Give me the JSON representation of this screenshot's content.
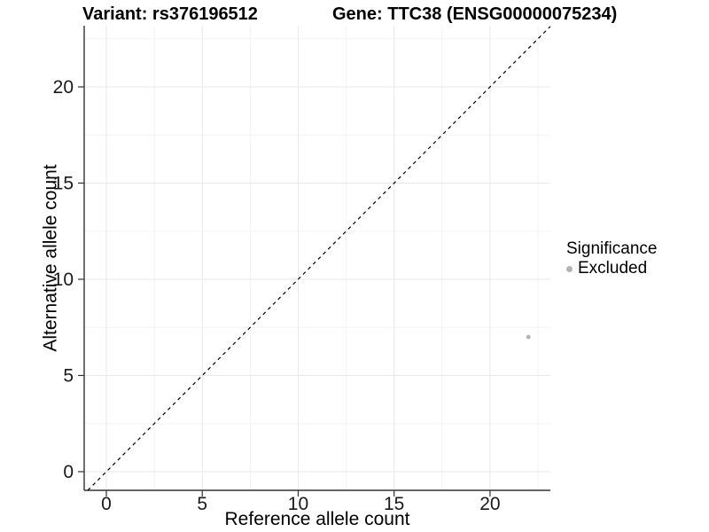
{
  "header": {
    "variant_title": "Variant: rs376196512",
    "gene_title": "Gene: TTC38 (ENSG00000075234)"
  },
  "chart_data": {
    "type": "scatter",
    "title": "Variant: rs376196512 / Gene: TTC38 (ENSG00000075234)",
    "xlabel": "Reference allele count",
    "ylabel": "Alternative allele count",
    "xlim": [
      -1.155,
      23.145
    ],
    "ylim": [
      -0.97,
      23.18
    ],
    "x_ticks": [
      0,
      5,
      10,
      15,
      20
    ],
    "y_ticks": [
      0,
      5,
      10,
      15,
      20
    ],
    "x_minor_ticks": [
      2.5,
      7.5,
      12.5,
      17.5,
      22.5
    ],
    "y_minor_ticks": [
      2.5,
      7.5,
      12.5,
      17.5,
      22.5
    ],
    "grid": true,
    "reference_line": {
      "kind": "identity",
      "slope": 1,
      "intercept": 0,
      "style": "dashed",
      "color": "#000000"
    },
    "series": [
      {
        "name": "Excluded",
        "color": "#b3b3b3",
        "points": [
          {
            "x": 22,
            "y": 7
          }
        ]
      }
    ],
    "legend": {
      "title": "Significance",
      "position": "right",
      "items": [
        {
          "label": "Excluded",
          "color": "#b3b3b3"
        }
      ]
    }
  },
  "colors": {
    "background": "#ffffff",
    "point": "#b3b3b3",
    "grid_major": "#e9e9e9",
    "grid_minor": "#f3f3f3",
    "axis_line": "#333333",
    "tick_text": "#1a1a1a",
    "dashed_line": "#000000"
  }
}
